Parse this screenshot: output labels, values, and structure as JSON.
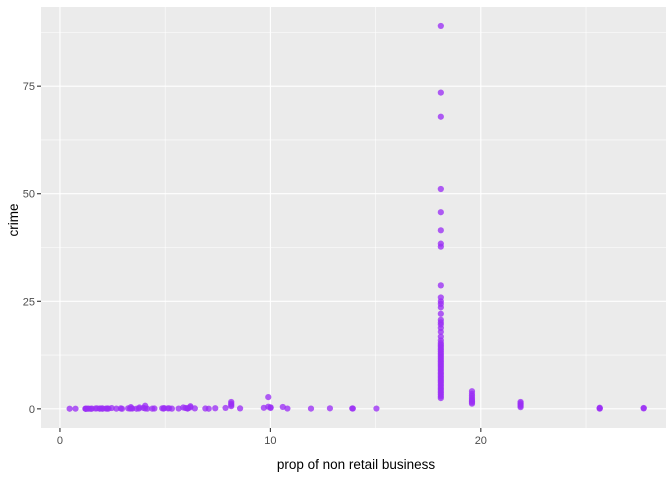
{
  "chart_data": {
    "type": "scatter",
    "title": "",
    "xlabel": "prop of non retail business",
    "ylabel": "crime",
    "xlim": [
      -0.9,
      28.8
    ],
    "ylim": [
      -4.45,
      93.4
    ],
    "x_ticks": [
      0,
      10,
      20
    ],
    "x_tick_labels": [
      "0",
      "10",
      "20"
    ],
    "y_ticks": [
      0,
      25,
      50,
      75
    ],
    "y_tick_labels": [
      "0",
      "25",
      "50",
      "75"
    ],
    "grid": true,
    "legend": "none",
    "colors": {
      "point": "#9B30F5",
      "panel_background": "#EBEBEB",
      "grid_major": "#FFFFFF",
      "page_background": "#FFFFFF"
    },
    "points": [
      [
        0.46,
        0.03
      ],
      [
        0.74,
        0.04
      ],
      [
        1.21,
        0.03
      ],
      [
        1.22,
        0.03
      ],
      [
        1.25,
        0.02
      ],
      [
        1.32,
        0.05
      ],
      [
        1.38,
        0.04
      ],
      [
        1.47,
        0.02
      ],
      [
        1.52,
        0.05
      ],
      [
        1.69,
        0.08
      ],
      [
        1.76,
        0.12
      ],
      [
        1.89,
        0.03
      ],
      [
        1.91,
        0.1
      ],
      [
        2.01,
        0.12
      ],
      [
        2.02,
        0.02
      ],
      [
        2.18,
        0.07
      ],
      [
        2.24,
        0.04
      ],
      [
        2.25,
        0.09
      ],
      [
        2.31,
        0.06
      ],
      [
        2.46,
        0.18
      ],
      [
        2.68,
        0.05
      ],
      [
        2.89,
        0.11
      ],
      [
        2.95,
        0.02
      ],
      [
        3.24,
        0.12
      ],
      [
        3.33,
        0.06
      ],
      [
        3.37,
        0.4
      ],
      [
        3.41,
        0.12
      ],
      [
        3.44,
        0.07
      ],
      [
        3.64,
        0.03
      ],
      [
        3.75,
        0.08
      ],
      [
        3.78,
        0.31
      ],
      [
        3.97,
        0.22
      ],
      [
        4.05,
        0.09
      ],
      [
        4.05,
        0.72
      ],
      [
        4.15,
        0.04
      ],
      [
        4.39,
        0.05
      ],
      [
        4.49,
        0.08
      ],
      [
        4.86,
        0.12
      ],
      [
        4.93,
        0.06
      ],
      [
        4.95,
        0.17
      ],
      [
        5.13,
        0.12
      ],
      [
        5.19,
        0.13
      ],
      [
        5.32,
        0.05
      ],
      [
        5.64,
        0.07
      ],
      [
        5.86,
        0.32
      ],
      [
        5.96,
        0.19
      ],
      [
        6.06,
        0.06
      ],
      [
        6.07,
        0.16
      ],
      [
        6.09,
        0.13
      ],
      [
        6.2,
        0.35
      ],
      [
        6.2,
        0.6
      ],
      [
        6.41,
        0.11
      ],
      [
        6.91,
        0.08
      ],
      [
        7.07,
        0.03
      ],
      [
        7.38,
        0.14
      ],
      [
        7.87,
        0.21
      ],
      [
        8.14,
        0.63
      ],
      [
        8.14,
        0.95
      ],
      [
        8.14,
        1.23
      ],
      [
        8.14,
        1.61
      ],
      [
        8.56,
        0.11
      ],
      [
        9.69,
        0.24
      ],
      [
        9.9,
        0.5
      ],
      [
        9.9,
        2.73
      ],
      [
        10.01,
        0.2
      ],
      [
        10.01,
        0.36
      ],
      [
        10.59,
        0.45
      ],
      [
        10.81,
        0.07
      ],
      [
        11.93,
        0.06
      ],
      [
        12.83,
        0.12
      ],
      [
        13.89,
        0.09
      ],
      [
        13.92,
        0.08
      ],
      [
        15.04,
        0.07
      ],
      [
        18.1,
        2.5
      ],
      [
        18.1,
        2.9
      ],
      [
        18.1,
        3.3
      ],
      [
        18.1,
        3.7
      ],
      [
        18.1,
        4.1
      ],
      [
        18.1,
        4.5
      ],
      [
        18.1,
        4.9
      ],
      [
        18.1,
        5.3
      ],
      [
        18.1,
        5.7
      ],
      [
        18.1,
        6.1
      ],
      [
        18.1,
        6.5
      ],
      [
        18.1,
        6.9
      ],
      [
        18.1,
        7.3
      ],
      [
        18.1,
        7.7
      ],
      [
        18.1,
        8.1
      ],
      [
        18.1,
        8.5
      ],
      [
        18.1,
        8.9
      ],
      [
        18.1,
        9.3
      ],
      [
        18.1,
        9.7
      ],
      [
        18.1,
        10.1
      ],
      [
        18.1,
        10.5
      ],
      [
        18.1,
        10.9
      ],
      [
        18.1,
        11.3
      ],
      [
        18.1,
        11.7
      ],
      [
        18.1,
        12.1
      ],
      [
        18.1,
        12.5
      ],
      [
        18.1,
        12.9
      ],
      [
        18.1,
        13.3
      ],
      [
        18.1,
        13.7
      ],
      [
        18.1,
        14.1
      ],
      [
        18.1,
        14.5
      ],
      [
        18.1,
        14.9
      ],
      [
        18.1,
        15.3
      ],
      [
        18.1,
        15.9
      ],
      [
        18.1,
        16.8
      ],
      [
        18.1,
        17.9
      ],
      [
        18.1,
        18.8
      ],
      [
        18.1,
        19.6
      ],
      [
        18.1,
        20.1
      ],
      [
        18.1,
        20.7
      ],
      [
        18.1,
        22.1
      ],
      [
        18.1,
        23.6
      ],
      [
        18.1,
        24.4
      ],
      [
        18.1,
        25.0
      ],
      [
        18.1,
        25.9
      ],
      [
        18.1,
        28.7
      ],
      [
        18.1,
        37.7
      ],
      [
        18.1,
        38.4
      ],
      [
        18.1,
        41.5
      ],
      [
        18.1,
        45.7
      ],
      [
        18.1,
        51.1
      ],
      [
        18.1,
        67.9
      ],
      [
        18.1,
        73.5
      ],
      [
        18.1,
        89.0
      ],
      [
        19.58,
        1.2
      ],
      [
        19.58,
        1.5
      ],
      [
        19.58,
        1.8
      ],
      [
        19.58,
        2.1
      ],
      [
        19.58,
        2.5
      ],
      [
        19.58,
        3.0
      ],
      [
        19.58,
        3.5
      ],
      [
        19.58,
        4.1
      ],
      [
        21.89,
        0.4
      ],
      [
        21.89,
        0.7
      ],
      [
        21.89,
        1.0
      ],
      [
        21.89,
        1.3
      ],
      [
        21.89,
        1.6
      ],
      [
        25.65,
        0.05
      ],
      [
        25.65,
        0.15
      ],
      [
        25.65,
        0.25
      ],
      [
        27.74,
        0.1
      ],
      [
        27.74,
        0.2
      ]
    ]
  }
}
